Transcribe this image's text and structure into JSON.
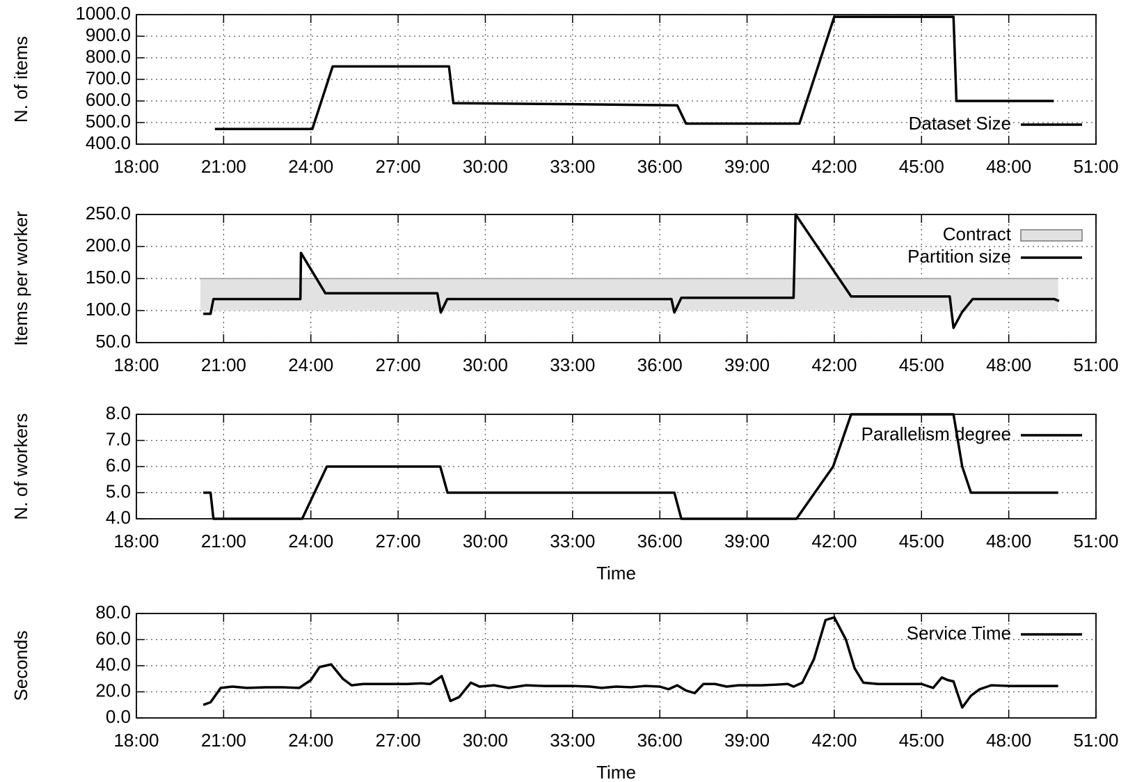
{
  "chart_data": [
    {
      "type": "line",
      "ylabel": "N. of items",
      "legend": "lower right",
      "grid": true,
      "xlim": [
        18,
        51
      ],
      "ylim": [
        400,
        1000
      ],
      "xticks": [
        {
          "value": 18,
          "label": "18:00"
        },
        {
          "value": 21,
          "label": "21:00"
        },
        {
          "value": 24,
          "label": "24:00"
        },
        {
          "value": 27,
          "label": "27:00"
        },
        {
          "value": 30,
          "label": "30:00"
        },
        {
          "value": 33,
          "label": "33:00"
        },
        {
          "value": 36,
          "label": "36:00"
        },
        {
          "value": 39,
          "label": "39:00"
        },
        {
          "value": 42,
          "label": "42:00"
        },
        {
          "value": 45,
          "label": "45:00"
        },
        {
          "value": 48,
          "label": "48:00"
        },
        {
          "value": 51,
          "label": "51:00"
        }
      ],
      "yticks": [
        {
          "value": 400,
          "label": "400.0"
        },
        {
          "value": 500,
          "label": "500.0"
        },
        {
          "value": 600,
          "label": "600.0"
        },
        {
          "value": 700,
          "label": "700.0"
        },
        {
          "value": 800,
          "label": "800.0"
        },
        {
          "value": 900,
          "label": "900.0"
        },
        {
          "value": 1000,
          "label": "1000.0"
        }
      ],
      "series": [
        {
          "name": "Dataset Size",
          "color": "#000000",
          "x": [
            20.7,
            24.05,
            24.75,
            28.75,
            28.9,
            33.0,
            36.6,
            36.9,
            40.8,
            42.0,
            46.1,
            46.2,
            49.55
          ],
          "values": [
            470,
            470,
            760,
            760,
            590,
            585,
            580,
            495,
            495,
            990,
            990,
            600,
            600
          ]
        }
      ]
    },
    {
      "type": "line",
      "ylabel": "Items per worker",
      "legend": "upper right",
      "grid": true,
      "xlim": [
        18,
        51
      ],
      "ylim": [
        50,
        250
      ],
      "xticks": [
        {
          "value": 18,
          "label": "18:00"
        },
        {
          "value": 21,
          "label": "21:00"
        },
        {
          "value": 24,
          "label": "24:00"
        },
        {
          "value": 27,
          "label": "27:00"
        },
        {
          "value": 30,
          "label": "30:00"
        },
        {
          "value": 33,
          "label": "33:00"
        },
        {
          "value": 36,
          "label": "36:00"
        },
        {
          "value": 39,
          "label": "39:00"
        },
        {
          "value": 42,
          "label": "42:00"
        },
        {
          "value": 45,
          "label": "45:00"
        },
        {
          "value": 48,
          "label": "48:00"
        },
        {
          "value": 51,
          "label": "51:00"
        }
      ],
      "yticks": [
        {
          "value": 50,
          "label": "50.0"
        },
        {
          "value": 100,
          "label": "100.0"
        },
        {
          "value": 150,
          "label": "150.0"
        },
        {
          "value": 200,
          "label": "200.0"
        },
        {
          "value": 250,
          "label": "250.0"
        }
      ],
      "series": [
        {
          "name": "Contract",
          "kind": "band",
          "color": "#e2e2e2",
          "x": [
            20.2,
            49.7
          ],
          "lower": [
            100,
            100
          ],
          "upper": [
            150,
            150
          ]
        },
        {
          "name": "Partition size",
          "color": "#000000",
          "x": [
            20.3,
            20.55,
            20.65,
            23.64,
            23.66,
            24.5,
            28.35,
            28.47,
            28.69,
            36.4,
            36.5,
            36.74,
            40.6,
            40.67,
            42.58,
            45.97,
            46.1,
            46.4,
            46.76,
            49.56,
            49.73
          ],
          "values": [
            95,
            95,
            118,
            118,
            190,
            127,
            127,
            97,
            118,
            118,
            97,
            120,
            120,
            250,
            122,
            122,
            73,
            98,
            118,
            118,
            115
          ]
        }
      ]
    },
    {
      "type": "line",
      "ylabel": "N. of workers",
      "xlabel": "Time",
      "legend": "upper right",
      "grid": true,
      "xlim": [
        18,
        51
      ],
      "ylim": [
        4,
        8
      ],
      "xticks": [
        {
          "value": 18,
          "label": "18:00"
        },
        {
          "value": 21,
          "label": "21:00"
        },
        {
          "value": 24,
          "label": "24:00"
        },
        {
          "value": 27,
          "label": "27:00"
        },
        {
          "value": 30,
          "label": "30:00"
        },
        {
          "value": 33,
          "label": "33:00"
        },
        {
          "value": 36,
          "label": "36:00"
        },
        {
          "value": 39,
          "label": "39:00"
        },
        {
          "value": 42,
          "label": "42:00"
        },
        {
          "value": 45,
          "label": "45:00"
        },
        {
          "value": 48,
          "label": "48:00"
        },
        {
          "value": 51,
          "label": "51:00"
        }
      ],
      "yticks": [
        {
          "value": 4,
          "label": "4.0"
        },
        {
          "value": 5,
          "label": "5.0"
        },
        {
          "value": 6,
          "label": "6.0"
        },
        {
          "value": 7,
          "label": "7.0"
        },
        {
          "value": 8,
          "label": "8.0"
        }
      ],
      "series": [
        {
          "name": "Parallelism degree",
          "color": "#000000",
          "x": [
            20.3,
            20.55,
            20.65,
            23.7,
            24.55,
            28.45,
            28.7,
            36.5,
            36.74,
            40.7,
            41.96,
            42.58,
            46.1,
            46.4,
            46.7,
            49.7
          ],
          "values": [
            5,
            5,
            4,
            4,
            6,
            6,
            5,
            5,
            4,
            4,
            6,
            8,
            8,
            6,
            5,
            5
          ]
        }
      ]
    },
    {
      "type": "line",
      "ylabel": "Seconds",
      "xlabel": "Time",
      "legend": "upper right",
      "grid": true,
      "xlim": [
        18,
        51
      ],
      "ylim": [
        0,
        80
      ],
      "xticks": [
        {
          "value": 18,
          "label": "18:00"
        },
        {
          "value": 21,
          "label": "21:00"
        },
        {
          "value": 24,
          "label": "24:00"
        },
        {
          "value": 27,
          "label": "27:00"
        },
        {
          "value": 30,
          "label": "30:00"
        },
        {
          "value": 33,
          "label": "33:00"
        },
        {
          "value": 36,
          "label": "36:00"
        },
        {
          "value": 39,
          "label": "39:00"
        },
        {
          "value": 42,
          "label": "42:00"
        },
        {
          "value": 45,
          "label": "45:00"
        },
        {
          "value": 48,
          "label": "48:00"
        },
        {
          "value": 51,
          "label": "51:00"
        }
      ],
      "yticks": [
        {
          "value": 0,
          "label": "0.0"
        },
        {
          "value": 20,
          "label": "20.0"
        },
        {
          "value": 40,
          "label": "40.0"
        },
        {
          "value": 60,
          "label": "60.0"
        },
        {
          "value": 80,
          "label": "80.0"
        }
      ],
      "series": [
        {
          "name": "Service Time",
          "color": "#000000",
          "x": [
            20.3,
            20.55,
            20.9,
            21.3,
            21.8,
            22.5,
            23.0,
            23.6,
            24.0,
            24.3,
            24.7,
            25.1,
            25.4,
            25.8,
            26.5,
            27.3,
            27.8,
            28.1,
            28.5,
            28.8,
            29.1,
            29.5,
            29.8,
            30.3,
            30.8,
            31.4,
            32.0,
            33.0,
            33.6,
            34.0,
            34.5,
            35.0,
            35.5,
            36.0,
            36.3,
            36.6,
            36.9,
            37.2,
            37.5,
            37.9,
            38.3,
            38.7,
            39.5,
            40.0,
            40.4,
            40.6,
            40.9,
            41.3,
            41.7,
            42.0,
            42.4,
            42.7,
            43.0,
            43.5,
            44.5,
            45.0,
            45.4,
            45.7,
            45.9,
            46.1,
            46.4,
            46.7,
            47.0,
            47.4,
            48.0,
            49.0,
            49.7
          ],
          "values": [
            10,
            12,
            23,
            24,
            23,
            23.5,
            23.5,
            23,
            29,
            39,
            41,
            30,
            25,
            26,
            26,
            26,
            26.5,
            26,
            32,
            13,
            16,
            27,
            24,
            25,
            23,
            25,
            24.5,
            24.5,
            24,
            23,
            24,
            23.5,
            24.5,
            24,
            22,
            25,
            21,
            19,
            26,
            26,
            24,
            25,
            25,
            25.5,
            26,
            24,
            27,
            45,
            75,
            77,
            60,
            38,
            27,
            26,
            26,
            26,
            23,
            31,
            29,
            28,
            8,
            17,
            22,
            25,
            24.5,
            24.5,
            24.5
          ]
        }
      ]
    }
  ]
}
